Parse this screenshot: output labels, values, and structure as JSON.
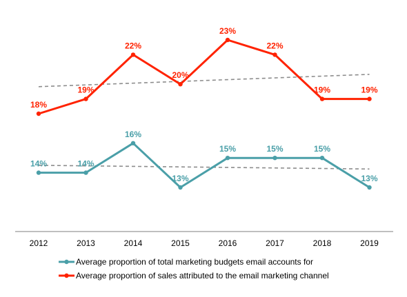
{
  "chart_data": {
    "type": "line",
    "title": "",
    "xlabel": "",
    "ylabel": "",
    "categories": [
      "2012",
      "2013",
      "2014",
      "2015",
      "2016",
      "2017",
      "2018",
      "2019"
    ],
    "ylim": [
      0,
      25
    ],
    "grid": false,
    "legend_position": "bottom",
    "series": [
      {
        "name": "Average proportion of total marketing budgets email accounts for",
        "color": "#4a9fa8",
        "values": [
          14,
          14,
          16,
          13,
          15,
          15,
          15,
          13
        ],
        "labels": [
          "14%",
          "14%",
          "16%",
          "13%",
          "15%",
          "15%",
          "15%",
          "13%"
        ],
        "trendline": true,
        "trendline_color": "#8c8c8c"
      },
      {
        "name": "Average proportion of sales attributed to the email marketing channel",
        "color": "#ff2200",
        "values": [
          18,
          19,
          22,
          20,
          23,
          22,
          19,
          19
        ],
        "labels": [
          "18%",
          "19%",
          "22%",
          "20%",
          "23%",
          "22%",
          "19%",
          "19%"
        ],
        "trendline": true,
        "trendline_color": "#8c8c8c"
      }
    ]
  }
}
